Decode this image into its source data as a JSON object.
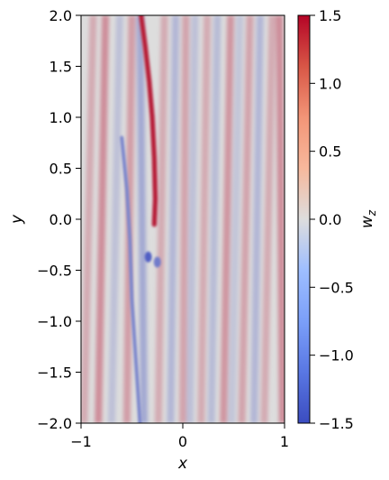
{
  "chart_data": {
    "type": "heatmap",
    "title": "",
    "xlabel": "x",
    "ylabel": "y",
    "xlim": [
      -1,
      1
    ],
    "ylim": [
      -2,
      2
    ],
    "x_ticks": [
      -1,
      0,
      1
    ],
    "x_tick_labels": [
      "−1",
      "0",
      "1"
    ],
    "y_ticks": [
      2.0,
      1.5,
      1.0,
      0.5,
      0.0,
      -0.5,
      -1.0,
      -1.5,
      -2.0
    ],
    "y_tick_labels": [
      "2.0",
      "1.5",
      "1.0",
      "0.5",
      "0.0",
      "−0.5",
      "−1.0",
      "−1.5",
      "−2.0"
    ],
    "colorbar": {
      "label_base": "w",
      "label_sub": "z",
      "range": [
        -1.5,
        1.5
      ],
      "ticks": [
        1.5,
        1.0,
        0.5,
        0.0,
        -0.5,
        -1.0,
        -1.5
      ],
      "tick_labels": [
        "1.5",
        "1.0",
        "0.5",
        "0.0",
        "−0.5",
        "−1.0",
        "−1.5"
      ],
      "colormap": "coolwarm",
      "colors": {
        "low": "#3b4cc0",
        "mid": "#dddddd",
        "high": "#b40426"
      }
    },
    "features": {
      "background_value": 0.0,
      "streaks": [
        {
          "x_top": -0.88,
          "x_bottom": -0.97,
          "value": 0.35
        },
        {
          "x_top": -0.76,
          "x_bottom": -0.83,
          "value": 0.55
        },
        {
          "x_top": -0.62,
          "x_bottom": -0.7,
          "value": -0.3
        },
        {
          "x_top": -0.5,
          "x_bottom": -0.55,
          "value": 0.45
        },
        {
          "x_top": -0.42,
          "x_bottom": -0.38,
          "value": -0.55
        },
        {
          "x_top": -0.18,
          "x_bottom": -0.24,
          "value": 0.35
        },
        {
          "x_top": -0.07,
          "x_bottom": -0.12,
          "value": -0.4
        },
        {
          "x_top": 0.03,
          "x_bottom": 0.0,
          "value": 0.4
        },
        {
          "x_top": 0.12,
          "x_bottom": 0.07,
          "value": -0.3
        },
        {
          "x_top": 0.24,
          "x_bottom": 0.18,
          "value": 0.35
        },
        {
          "x_top": 0.34,
          "x_bottom": 0.28,
          "value": -0.35
        },
        {
          "x_top": 0.47,
          "x_bottom": 0.4,
          "value": 0.5
        },
        {
          "x_top": 0.56,
          "x_bottom": 0.48,
          "value": -0.25
        },
        {
          "x_top": 0.66,
          "x_bottom": 0.58,
          "value": 0.4
        },
        {
          "x_top": 0.76,
          "x_bottom": 0.7,
          "value": -0.4
        },
        {
          "x_top": 0.88,
          "x_bottom": 0.8,
          "value": 0.35
        },
        {
          "x_top": 0.95,
          "x_bottom": 0.98,
          "value": 0.55
        }
      ],
      "filament": {
        "value": 1.5,
        "points": [
          [
            -0.41,
            2.0
          ],
          [
            -0.37,
            1.7
          ],
          [
            -0.33,
            1.35
          ],
          [
            -0.3,
            1.0
          ],
          [
            -0.28,
            0.6
          ],
          [
            -0.27,
            0.2
          ],
          [
            -0.28,
            -0.05
          ]
        ]
      },
      "negative_filament": {
        "value": -0.9,
        "points": [
          [
            -0.6,
            0.8
          ],
          [
            -0.55,
            0.3
          ],
          [
            -0.52,
            -0.2
          ],
          [
            -0.5,
            -0.8
          ],
          [
            -0.46,
            -1.4
          ],
          [
            -0.42,
            -2.0
          ]
        ]
      },
      "vortices": [
        {
          "x": -0.34,
          "y": -0.37,
          "value": -1.3
        },
        {
          "x": -0.25,
          "y": -0.42,
          "value": -1.0
        }
      ]
    }
  }
}
